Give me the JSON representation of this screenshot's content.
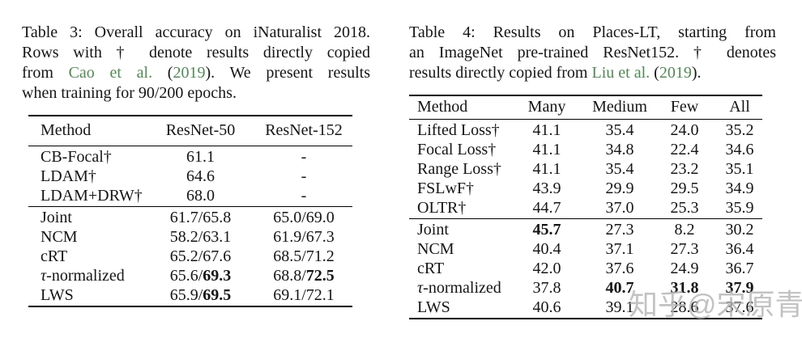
{
  "page": {
    "background": "#ffffff",
    "text_color": "#151515",
    "citation_color": "#4e8c52"
  },
  "watermark": {
    "text": "知乎@宋原青",
    "color": "#b3b3b3"
  },
  "table3": {
    "caption_lines": [
      [
        {
          "t": "Table 3: Overall accuracy on iNaturalist 2018."
        }
      ],
      [
        {
          "t": "Rows with † denote results directly copied"
        }
      ],
      [
        {
          "t": "from "
        },
        {
          "t": "Cao et al.",
          "g": true
        },
        {
          "t": " ("
        },
        {
          "t": "2019",
          "g": true
        },
        {
          "t": "). We present results"
        }
      ],
      [
        {
          "t": "when training for 90/200 epochs."
        }
      ]
    ],
    "headers": [
      "Method",
      "ResNet-50",
      "ResNet-152"
    ],
    "groups": [
      [
        [
          [
            {
              "t": "CB-Focal†"
            }
          ],
          [
            {
              "t": "61.1"
            }
          ],
          [
            {
              "t": "-"
            }
          ]
        ],
        [
          [
            {
              "t": "LDAM†"
            }
          ],
          [
            {
              "t": "64.6"
            }
          ],
          [
            {
              "t": "-"
            }
          ]
        ],
        [
          [
            {
              "t": "LDAM+DRW†"
            }
          ],
          [
            {
              "t": "68.0"
            }
          ],
          [
            {
              "t": "-"
            }
          ]
        ]
      ],
      [
        [
          [
            {
              "t": "Joint"
            }
          ],
          [
            {
              "t": "61.7/65.8"
            }
          ],
          [
            {
              "t": "65.0/69.0"
            }
          ]
        ],
        [
          [
            {
              "t": "NCM"
            }
          ],
          [
            {
              "t": "58.2/63.1"
            }
          ],
          [
            {
              "t": "61.9/67.3"
            }
          ]
        ],
        [
          [
            {
              "t": "cRT"
            }
          ],
          [
            {
              "t": "65.2/67.6"
            }
          ],
          [
            {
              "t": "68.5/71.2"
            }
          ]
        ],
        [
          [
            {
              "t": "τ",
              "i": true
            },
            {
              "t": "-normalized"
            }
          ],
          [
            {
              "t": "65.6/"
            },
            {
              "t": "69.3",
              "b": true
            }
          ],
          [
            {
              "t": "68.8/"
            },
            {
              "t": "72.5",
              "b": true
            }
          ]
        ],
        [
          [
            {
              "t": "LWS"
            }
          ],
          [
            {
              "t": "65.9/"
            },
            {
              "t": "69.5",
              "b": true
            }
          ],
          [
            {
              "t": "69.1/72.1"
            }
          ]
        ]
      ]
    ]
  },
  "table4": {
    "caption_lines": [
      [
        {
          "t": "Table 4: Results on Places-LT, starting from"
        }
      ],
      [
        {
          "t": "an ImageNet pre-trained ResNet152. † denotes"
        }
      ],
      [
        {
          "t": "results directly copied from "
        },
        {
          "t": "Liu et al.",
          "g": true
        },
        {
          "t": " ("
        },
        {
          "t": "2019",
          "g": true
        },
        {
          "t": ")."
        }
      ]
    ],
    "headers": [
      "Method",
      "Many",
      "Medium",
      "Few",
      "All"
    ],
    "groups": [
      [
        [
          [
            {
              "t": "Lifted Loss†"
            }
          ],
          [
            {
              "t": "41.1"
            }
          ],
          [
            {
              "t": "35.4"
            }
          ],
          [
            {
              "t": "24.0"
            }
          ],
          [
            {
              "t": "35.2"
            }
          ]
        ],
        [
          [
            {
              "t": "Focal Loss†"
            }
          ],
          [
            {
              "t": "41.1"
            }
          ],
          [
            {
              "t": "34.8"
            }
          ],
          [
            {
              "t": "22.4"
            }
          ],
          [
            {
              "t": "34.6"
            }
          ]
        ],
        [
          [
            {
              "t": "Range Loss†"
            }
          ],
          [
            {
              "t": "41.1"
            }
          ],
          [
            {
              "t": "35.4"
            }
          ],
          [
            {
              "t": "23.2"
            }
          ],
          [
            {
              "t": "35.1"
            }
          ]
        ],
        [
          [
            {
              "t": "FSLwF†"
            }
          ],
          [
            {
              "t": "43.9"
            }
          ],
          [
            {
              "t": "29.9"
            }
          ],
          [
            {
              "t": "29.5"
            }
          ],
          [
            {
              "t": "34.9"
            }
          ]
        ],
        [
          [
            {
              "t": "OLTR†"
            }
          ],
          [
            {
              "t": "44.7"
            }
          ],
          [
            {
              "t": "37.0"
            }
          ],
          [
            {
              "t": "25.3"
            }
          ],
          [
            {
              "t": "35.9"
            }
          ]
        ]
      ],
      [
        [
          [
            {
              "t": "Joint"
            }
          ],
          [
            {
              "t": "45.7",
              "b": true
            }
          ],
          [
            {
              "t": "27.3"
            }
          ],
          [
            {
              "t": "8.2"
            }
          ],
          [
            {
              "t": "30.2"
            }
          ]
        ],
        [
          [
            {
              "t": "NCM"
            }
          ],
          [
            {
              "t": "40.4"
            }
          ],
          [
            {
              "t": "37.1"
            }
          ],
          [
            {
              "t": "27.3"
            }
          ],
          [
            {
              "t": "36.4"
            }
          ]
        ],
        [
          [
            {
              "t": "cRT"
            }
          ],
          [
            {
              "t": "42.0"
            }
          ],
          [
            {
              "t": "37.6"
            }
          ],
          [
            {
              "t": "24.9"
            }
          ],
          [
            {
              "t": "36.7"
            }
          ]
        ],
        [
          [
            {
              "t": "τ",
              "i": true
            },
            {
              "t": "-normalized"
            }
          ],
          [
            {
              "t": "37.8"
            }
          ],
          [
            {
              "t": "40.7",
              "b": true
            }
          ],
          [
            {
              "t": "31.8",
              "b": true
            }
          ],
          [
            {
              "t": "37.9",
              "b": true
            }
          ]
        ],
        [
          [
            {
              "t": "LWS"
            }
          ],
          [
            {
              "t": "40.6"
            }
          ],
          [
            {
              "t": "39.1"
            }
          ],
          [
            {
              "t": "28.6"
            }
          ],
          [
            {
              "t": "37.6"
            }
          ]
        ]
      ]
    ]
  }
}
